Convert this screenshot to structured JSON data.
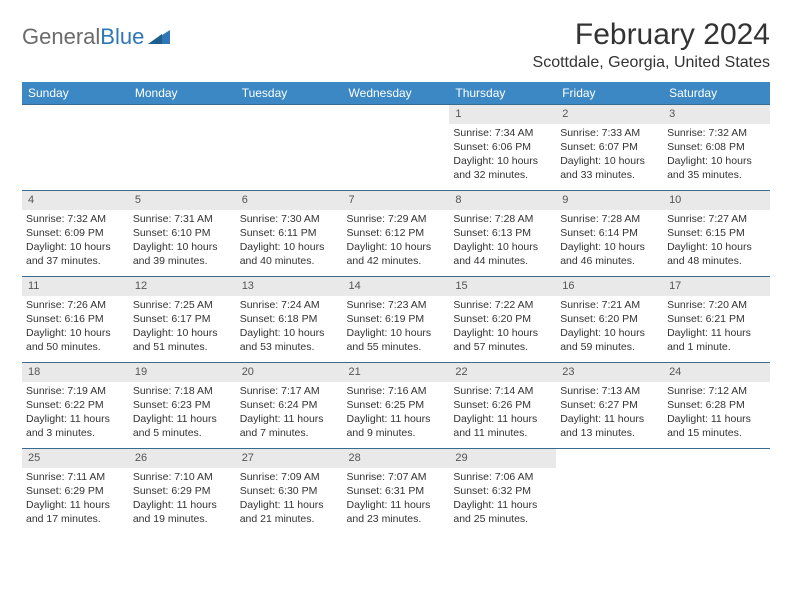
{
  "brand": {
    "word1": "General",
    "word2": "Blue"
  },
  "title": "February 2024",
  "location": "Scottdale, Georgia, United States",
  "colors": {
    "header_bg": "#3b88c4",
    "header_text": "#ffffff",
    "daynum_bg": "#e9e9e9",
    "row_border": "#3b6a8f",
    "logo_gray": "#6b6b6b",
    "logo_blue": "#2f77b6",
    "text": "#333333",
    "background": "#ffffff"
  },
  "typography": {
    "title_fontsize": 30,
    "location_fontsize": 16,
    "header_fontsize": 12,
    "cell_fontsize": 10.5,
    "logo_fontsize": 22
  },
  "weekdays": [
    "Sunday",
    "Monday",
    "Tuesday",
    "Wednesday",
    "Thursday",
    "Friday",
    "Saturday"
  ],
  "weeks": [
    [
      null,
      null,
      null,
      null,
      {
        "n": "1",
        "sr": "Sunrise: 7:34 AM",
        "ss": "Sunset: 6:06 PM",
        "dl1": "Daylight: 10 hours",
        "dl2": "and 32 minutes."
      },
      {
        "n": "2",
        "sr": "Sunrise: 7:33 AM",
        "ss": "Sunset: 6:07 PM",
        "dl1": "Daylight: 10 hours",
        "dl2": "and 33 minutes."
      },
      {
        "n": "3",
        "sr": "Sunrise: 7:32 AM",
        "ss": "Sunset: 6:08 PM",
        "dl1": "Daylight: 10 hours",
        "dl2": "and 35 minutes."
      }
    ],
    [
      {
        "n": "4",
        "sr": "Sunrise: 7:32 AM",
        "ss": "Sunset: 6:09 PM",
        "dl1": "Daylight: 10 hours",
        "dl2": "and 37 minutes."
      },
      {
        "n": "5",
        "sr": "Sunrise: 7:31 AM",
        "ss": "Sunset: 6:10 PM",
        "dl1": "Daylight: 10 hours",
        "dl2": "and 39 minutes."
      },
      {
        "n": "6",
        "sr": "Sunrise: 7:30 AM",
        "ss": "Sunset: 6:11 PM",
        "dl1": "Daylight: 10 hours",
        "dl2": "and 40 minutes."
      },
      {
        "n": "7",
        "sr": "Sunrise: 7:29 AM",
        "ss": "Sunset: 6:12 PM",
        "dl1": "Daylight: 10 hours",
        "dl2": "and 42 minutes."
      },
      {
        "n": "8",
        "sr": "Sunrise: 7:28 AM",
        "ss": "Sunset: 6:13 PM",
        "dl1": "Daylight: 10 hours",
        "dl2": "and 44 minutes."
      },
      {
        "n": "9",
        "sr": "Sunrise: 7:28 AM",
        "ss": "Sunset: 6:14 PM",
        "dl1": "Daylight: 10 hours",
        "dl2": "and 46 minutes."
      },
      {
        "n": "10",
        "sr": "Sunrise: 7:27 AM",
        "ss": "Sunset: 6:15 PM",
        "dl1": "Daylight: 10 hours",
        "dl2": "and 48 minutes."
      }
    ],
    [
      {
        "n": "11",
        "sr": "Sunrise: 7:26 AM",
        "ss": "Sunset: 6:16 PM",
        "dl1": "Daylight: 10 hours",
        "dl2": "and 50 minutes."
      },
      {
        "n": "12",
        "sr": "Sunrise: 7:25 AM",
        "ss": "Sunset: 6:17 PM",
        "dl1": "Daylight: 10 hours",
        "dl2": "and 51 minutes."
      },
      {
        "n": "13",
        "sr": "Sunrise: 7:24 AM",
        "ss": "Sunset: 6:18 PM",
        "dl1": "Daylight: 10 hours",
        "dl2": "and 53 minutes."
      },
      {
        "n": "14",
        "sr": "Sunrise: 7:23 AM",
        "ss": "Sunset: 6:19 PM",
        "dl1": "Daylight: 10 hours",
        "dl2": "and 55 minutes."
      },
      {
        "n": "15",
        "sr": "Sunrise: 7:22 AM",
        "ss": "Sunset: 6:20 PM",
        "dl1": "Daylight: 10 hours",
        "dl2": "and 57 minutes."
      },
      {
        "n": "16",
        "sr": "Sunrise: 7:21 AM",
        "ss": "Sunset: 6:20 PM",
        "dl1": "Daylight: 10 hours",
        "dl2": "and 59 minutes."
      },
      {
        "n": "17",
        "sr": "Sunrise: 7:20 AM",
        "ss": "Sunset: 6:21 PM",
        "dl1": "Daylight: 11 hours",
        "dl2": "and 1 minute."
      }
    ],
    [
      {
        "n": "18",
        "sr": "Sunrise: 7:19 AM",
        "ss": "Sunset: 6:22 PM",
        "dl1": "Daylight: 11 hours",
        "dl2": "and 3 minutes."
      },
      {
        "n": "19",
        "sr": "Sunrise: 7:18 AM",
        "ss": "Sunset: 6:23 PM",
        "dl1": "Daylight: 11 hours",
        "dl2": "and 5 minutes."
      },
      {
        "n": "20",
        "sr": "Sunrise: 7:17 AM",
        "ss": "Sunset: 6:24 PM",
        "dl1": "Daylight: 11 hours",
        "dl2": "and 7 minutes."
      },
      {
        "n": "21",
        "sr": "Sunrise: 7:16 AM",
        "ss": "Sunset: 6:25 PM",
        "dl1": "Daylight: 11 hours",
        "dl2": "and 9 minutes."
      },
      {
        "n": "22",
        "sr": "Sunrise: 7:14 AM",
        "ss": "Sunset: 6:26 PM",
        "dl1": "Daylight: 11 hours",
        "dl2": "and 11 minutes."
      },
      {
        "n": "23",
        "sr": "Sunrise: 7:13 AM",
        "ss": "Sunset: 6:27 PM",
        "dl1": "Daylight: 11 hours",
        "dl2": "and 13 minutes."
      },
      {
        "n": "24",
        "sr": "Sunrise: 7:12 AM",
        "ss": "Sunset: 6:28 PM",
        "dl1": "Daylight: 11 hours",
        "dl2": "and 15 minutes."
      }
    ],
    [
      {
        "n": "25",
        "sr": "Sunrise: 7:11 AM",
        "ss": "Sunset: 6:29 PM",
        "dl1": "Daylight: 11 hours",
        "dl2": "and 17 minutes."
      },
      {
        "n": "26",
        "sr": "Sunrise: 7:10 AM",
        "ss": "Sunset: 6:29 PM",
        "dl1": "Daylight: 11 hours",
        "dl2": "and 19 minutes."
      },
      {
        "n": "27",
        "sr": "Sunrise: 7:09 AM",
        "ss": "Sunset: 6:30 PM",
        "dl1": "Daylight: 11 hours",
        "dl2": "and 21 minutes."
      },
      {
        "n": "28",
        "sr": "Sunrise: 7:07 AM",
        "ss": "Sunset: 6:31 PM",
        "dl1": "Daylight: 11 hours",
        "dl2": "and 23 minutes."
      },
      {
        "n": "29",
        "sr": "Sunrise: 7:06 AM",
        "ss": "Sunset: 6:32 PM",
        "dl1": "Daylight: 11 hours",
        "dl2": "and 25 minutes."
      },
      null,
      null
    ]
  ]
}
